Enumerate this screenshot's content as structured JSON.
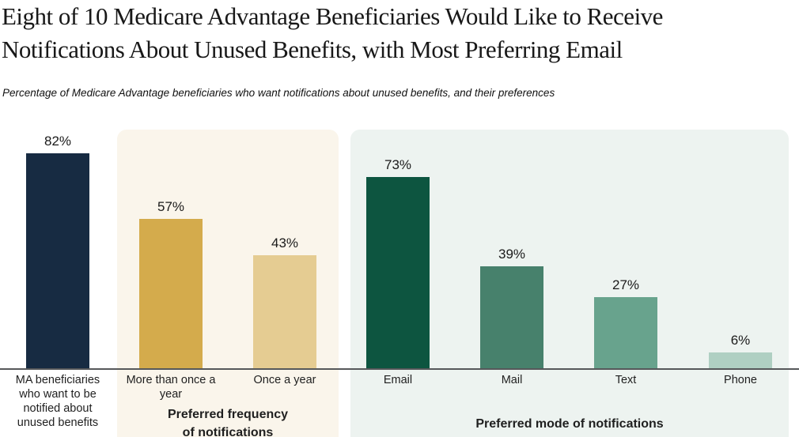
{
  "header": {
    "title": "Eight of 10 Medicare Advantage Beneficiaries Would Like to Receive\nNotifications About Unused Benefits, with Most Preferring Email",
    "subtitle": "Percentage of Medicare Advantage beneficiaries who want notifications about unused benefits, and their preferences"
  },
  "colors": {
    "navy": "#172B42",
    "gold": "#D4AB4C",
    "tan": "#E5CC92",
    "dark_green": "#0D5540",
    "mid_green": "#47816C",
    "seafoam_green": "#68A38D",
    "pale_green": "#AFCFC2",
    "cream_panel": "#FAF5EB",
    "mint_panel": "#EDF3F0",
    "axis": "#56585a"
  },
  "chart_data": {
    "type": "bar",
    "title": "Eight of 10 Medicare Advantage Beneficiaries Would Like to Receive Notifications About Unused Benefits, with Most Preferring Email",
    "subtitle": "Percentage of Medicare Advantage beneficiaries who want notifications about unused benefits, and their preferences",
    "ylim": [
      0,
      100
    ],
    "grid": false,
    "legend": "none",
    "value_unit": "%",
    "categories": [
      "MA beneficiaries who want to be notified about unused benefits",
      "More than once a year",
      "Once a year",
      "Email",
      "Mail",
      "Text",
      "Phone"
    ],
    "values": [
      82,
      57,
      43,
      73,
      39,
      27,
      6
    ],
    "groups": [
      {
        "name": "overall",
        "caption": "",
        "panel_color": "transparent",
        "bars": [
          {
            "label": "MA beneficiaries\nwho want to be\nnotified about\nunused benefits",
            "value": 82,
            "value_label": "82%",
            "color": "#172B42"
          }
        ]
      },
      {
        "name": "frequency",
        "caption": "Preferred frequency\nof notifications",
        "panel_color": "#FAF5EB",
        "bars": [
          {
            "label": "More than once a\nyear",
            "value": 57,
            "value_label": "57%",
            "color": "#D4AB4C"
          },
          {
            "label": "Once a year",
            "value": 43,
            "value_label": "43%",
            "color": "#E5CC92"
          }
        ]
      },
      {
        "name": "mode",
        "caption": "Preferred mode of notifications",
        "panel_color": "#EDF3F0",
        "bars": [
          {
            "label": "Email",
            "value": 73,
            "value_label": "73%",
            "color": "#0D5540"
          },
          {
            "label": "Mail",
            "value": 39,
            "value_label": "39%",
            "color": "#47816C"
          },
          {
            "label": "Text",
            "value": 27,
            "value_label": "27%",
            "color": "#68A38D"
          },
          {
            "label": "Phone",
            "value": 6,
            "value_label": "6%",
            "color": "#AFCFC2"
          }
        ]
      }
    ]
  }
}
